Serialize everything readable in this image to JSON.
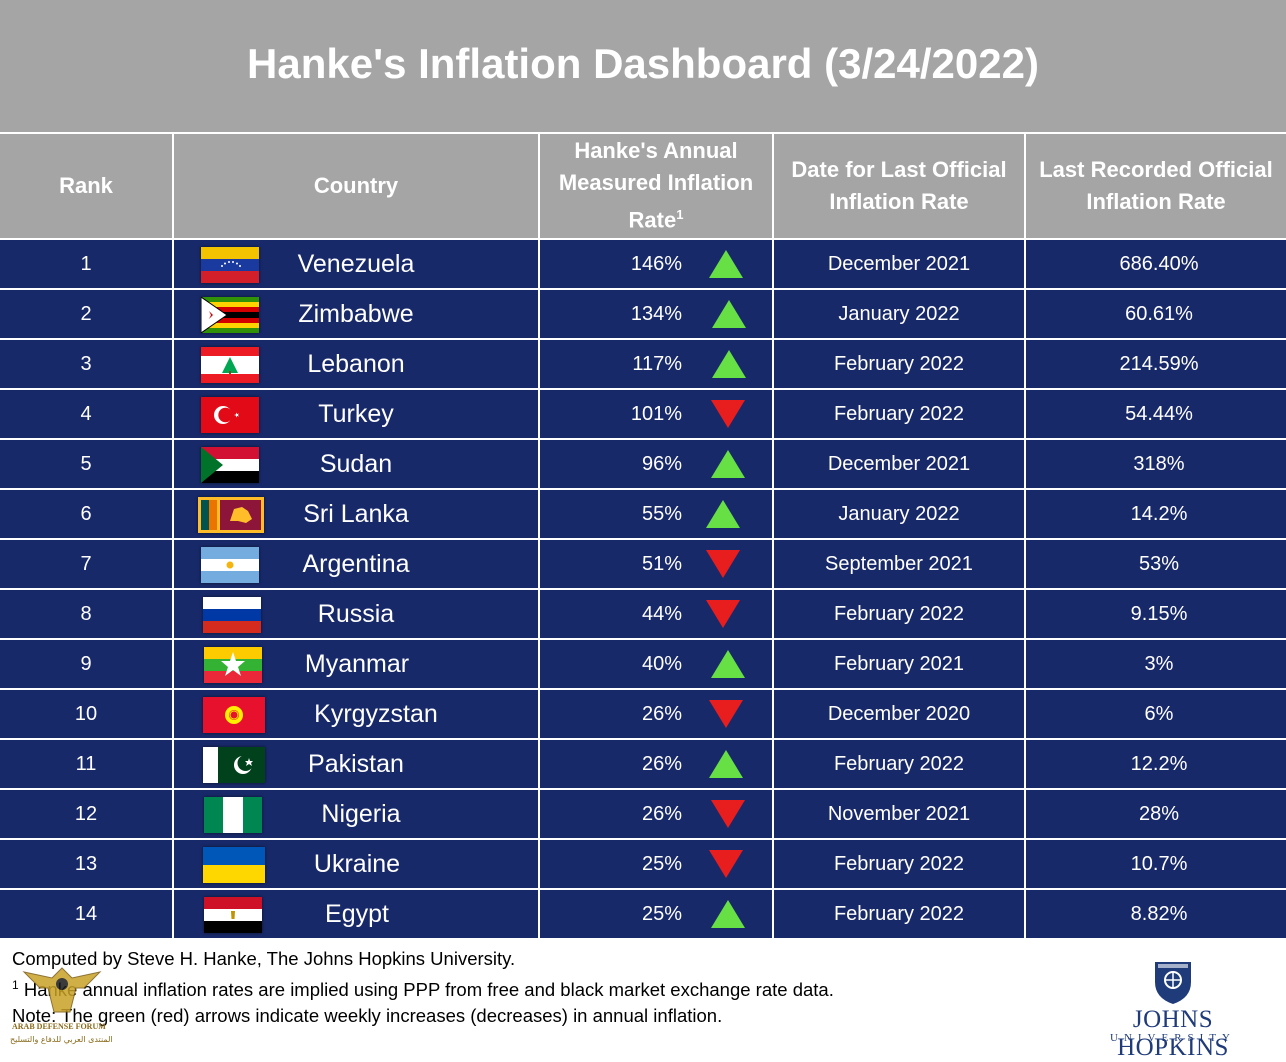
{
  "title": "Hanke's Inflation Dashboard (3/24/2022)",
  "headers": {
    "rank": "Rank",
    "country": "Country",
    "hanke_line1": "Hanke's Annual",
    "hanke_line2": "Measured Inflation",
    "hanke_line3": "Rate",
    "hanke_sup": "1",
    "date_line1": "Date for Last Official",
    "date_line2": "Inflation Rate",
    "official_line1": "Last Recorded Official",
    "official_line2": "Inflation Rate"
  },
  "colors": {
    "header_bg": "#a5a5a5",
    "row_bg": "#18296a",
    "up_arrow": "#66e044",
    "down_arrow": "#e81d1d"
  },
  "rows": [
    {
      "rank": "1",
      "country": "Venezuela",
      "rate": "146%",
      "direction": "up",
      "date": "December 2021",
      "official": "686.40%",
      "flag": "venezuela-flag"
    },
    {
      "rank": "2",
      "country": "Zimbabwe",
      "rate": "134%",
      "direction": "up",
      "date": "January 2022",
      "official": "60.61%",
      "flag": "zimbabwe-flag"
    },
    {
      "rank": "3",
      "country": "Lebanon",
      "rate": "117%",
      "direction": "up",
      "date": "February 2022",
      "official": "214.59%",
      "flag": "lebanon-flag"
    },
    {
      "rank": "4",
      "country": "Turkey",
      "rate": "101%",
      "direction": "down",
      "date": "February 2022",
      "official": "54.44%",
      "flag": "turkey-flag"
    },
    {
      "rank": "5",
      "country": "Sudan",
      "rate": "96%",
      "direction": "up",
      "date": "December 2021",
      "official": "318%",
      "flag": "sudan-flag"
    },
    {
      "rank": "6",
      "country": "Sri Lanka",
      "rate": "55%",
      "direction": "up",
      "date": "January 2022",
      "official": "14.2%",
      "flag": "sri-lanka-flag"
    },
    {
      "rank": "7",
      "country": "Argentina",
      "rate": "51%",
      "direction": "down",
      "date": "September 2021",
      "official": "53%",
      "flag": "argentina-flag"
    },
    {
      "rank": "8",
      "country": "Russia",
      "rate": "44%",
      "direction": "down",
      "date": "February 2022",
      "official": "9.15%",
      "flag": "russia-flag"
    },
    {
      "rank": "9",
      "country": "Myanmar",
      "rate": "40%",
      "direction": "up",
      "date": "February 2021",
      "official": "3%",
      "flag": "myanmar-flag"
    },
    {
      "rank": "10",
      "country": "Kyrgyzstan",
      "rate": "26%",
      "direction": "down",
      "date": "December 2020",
      "official": "6%",
      "flag": "kyrgyzstan-flag"
    },
    {
      "rank": "11",
      "country": "Pakistan",
      "rate": "26%",
      "direction": "up",
      "date": "February 2022",
      "official": "12.2%",
      "flag": "pakistan-flag"
    },
    {
      "rank": "12",
      "country": "Nigeria",
      "rate": "26%",
      "direction": "down",
      "date": "November 2021",
      "official": "28%",
      "flag": "nigeria-flag"
    },
    {
      "rank": "13",
      "country": "Ukraine",
      "rate": "25%",
      "direction": "down",
      "date": "February 2022",
      "official": "10.7%",
      "flag": "ukraine-flag"
    },
    {
      "rank": "14",
      "country": "Egypt",
      "rate": "25%",
      "direction": "up",
      "date": "February 2022",
      "official": "8.82%",
      "flag": "egypt-flag"
    }
  ],
  "footer": {
    "line1": "Computed by Steve H. Hanke, The Johns Hopkins University.",
    "line2_sup": "1",
    "line2": " Hanke annual inflation rates are implied using PPP from free and black market exchange rate data.",
    "line3": "Note: The green (red) arrows indicate weekly increases (decreases) in annual inflation."
  },
  "logo": {
    "name": "JOHNS HOPKINS",
    "sub": "UNIVERSITY",
    "icon": "jhu-shield-icon"
  },
  "watermark": {
    "line1": "ARAB DEFENSE FORUM",
    "line2": "المنتدى العربي للدفاع والتسليح",
    "icon": "eagle-emblem-icon"
  }
}
